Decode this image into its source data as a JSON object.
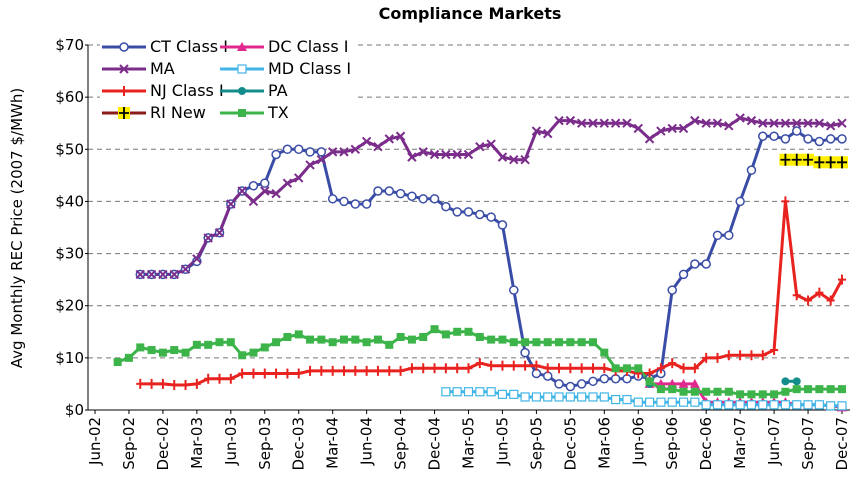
{
  "chart_data": {
    "type": "line",
    "title": "Compliance Markets",
    "y_label": "Avg Monthly REC Price (2007 $/MWh)",
    "categories": [
      "Jun-02",
      null,
      null,
      "Sep-02",
      null,
      null,
      "Dec-02",
      null,
      null,
      "Mar-03",
      null,
      null,
      "Jun-03",
      null,
      null,
      "Sep-03",
      null,
      null,
      "Dec-03",
      null,
      null,
      "Mar-04",
      null,
      null,
      "Jun-04",
      null,
      null,
      "Sep-04",
      null,
      null,
      "Dec-04",
      null,
      null,
      "Mar-05",
      null,
      null,
      "Jun-05",
      null,
      null,
      "Sep-05",
      null,
      null,
      "Dec-05",
      null,
      null,
      "Mar-06",
      null,
      null,
      "Jun-06",
      null,
      null,
      "Sep-06",
      null,
      null,
      "Dec-06",
      null,
      null,
      "Mar-07",
      null,
      null,
      "Jun-07",
      null,
      null,
      "Sep-07",
      null,
      null,
      "Dec-07"
    ],
    "ylim": [
      0,
      70
    ],
    "yticks": [
      {
        "value": 0,
        "label": "$0"
      },
      {
        "value": 10,
        "label": "$10"
      },
      {
        "value": 20,
        "label": "$20"
      },
      {
        "value": 30,
        "label": "$30"
      },
      {
        "value": 40,
        "label": "$40"
      },
      {
        "value": 50,
        "label": "$50"
      },
      {
        "value": 60,
        "label": "$60"
      },
      {
        "value": 70,
        "label": "$70"
      }
    ],
    "grid": true,
    "legend": "top-left",
    "series": [
      {
        "name": "CT Class I",
        "color": "#3a4da6",
        "marker": "circle-open",
        "values": [
          null,
          null,
          null,
          null,
          26,
          26,
          26,
          26,
          27,
          28.5,
          33,
          34,
          39.5,
          42,
          43,
          43.5,
          49,
          50,
          50,
          49.5,
          49.5,
          40.5,
          40,
          39.5,
          39.5,
          42,
          42,
          41.5,
          41,
          40.5,
          40.5,
          39,
          38,
          38,
          37.5,
          37,
          35.5,
          23,
          11,
          7,
          6.5,
          5,
          4.5,
          5,
          5.5,
          6,
          6,
          6,
          6.5,
          6,
          7,
          23,
          26,
          28,
          28,
          33.5,
          33.5,
          40,
          46,
          52.5,
          52.5,
          52,
          53.5,
          52,
          51.5,
          52,
          52
        ]
      },
      {
        "name": "DC Class I",
        "color": "#e0288e",
        "marker": "triangle",
        "values": [
          null,
          null,
          null,
          null,
          null,
          null,
          null,
          null,
          null,
          null,
          null,
          null,
          null,
          null,
          null,
          null,
          null,
          null,
          null,
          null,
          null,
          null,
          null,
          null,
          null,
          null,
          null,
          null,
          null,
          null,
          null,
          null,
          null,
          null,
          null,
          null,
          null,
          null,
          null,
          null,
          null,
          null,
          null,
          null,
          null,
          null,
          null,
          null,
          null,
          5,
          5,
          5,
          5,
          5,
          1.5,
          1.5,
          1.5,
          1.5,
          1.5,
          1.5,
          1.5,
          1.5,
          1,
          1,
          1,
          0.8,
          0.5
        ]
      },
      {
        "name": "MA",
        "color": "#7b2d8b",
        "marker": "x",
        "values": [
          null,
          null,
          null,
          null,
          26,
          26,
          26,
          26,
          27,
          29,
          33,
          34,
          39.5,
          42,
          40,
          42,
          41.5,
          43.5,
          44.5,
          47,
          48,
          49.5,
          49.5,
          50,
          51.5,
          50.5,
          52,
          52.5,
          48.5,
          49.5,
          49,
          49,
          49,
          49,
          50.5,
          51,
          48.5,
          48,
          48,
          53.5,
          53,
          55.5,
          55.5,
          55,
          55,
          55,
          55,
          55,
          54,
          52,
          53.5,
          54,
          54,
          55.5,
          55,
          55,
          54.5,
          56,
          55.5,
          55,
          55,
          55,
          55,
          55,
          55,
          54.5,
          55
        ]
      },
      {
        "name": "MD Class I",
        "color": "#41b6e6",
        "marker": "square-open",
        "values": [
          null,
          null,
          null,
          null,
          null,
          null,
          null,
          null,
          null,
          null,
          null,
          null,
          null,
          null,
          null,
          null,
          null,
          null,
          null,
          null,
          null,
          null,
          null,
          null,
          null,
          null,
          null,
          null,
          null,
          null,
          null,
          3.5,
          3.5,
          3.5,
          3.5,
          3.5,
          3,
          3,
          2.5,
          2.5,
          2.5,
          2.5,
          2.5,
          2.5,
          2.5,
          2.5,
          2,
          2,
          1.5,
          1.5,
          1.5,
          1.5,
          1.5,
          1.5,
          1,
          1,
          1,
          1,
          1,
          1,
          1,
          1,
          1,
          1,
          1,
          0.8,
          0.8
        ]
      },
      {
        "name": "NJ Class I",
        "color": "#e8231f",
        "marker": "plus",
        "values": [
          null,
          null,
          null,
          null,
          5,
          5,
          5,
          4.8,
          4.8,
          5,
          6,
          6,
          6,
          7,
          7,
          7,
          7,
          7,
          7,
          7.5,
          7.5,
          7.5,
          7.5,
          7.5,
          7.5,
          7.5,
          7.5,
          7.5,
          8,
          8,
          8,
          8,
          8,
          8,
          9,
          8.5,
          8.5,
          8.5,
          8.5,
          8.5,
          8,
          8,
          8,
          8,
          8,
          8,
          7.5,
          7.5,
          7,
          7,
          8,
          9,
          8,
          8,
          10,
          10,
          10.5,
          10.5,
          10.5,
          10.5,
          11.5,
          40,
          22,
          21,
          22.5,
          21,
          25
        ]
      },
      {
        "name": "PA",
        "color": "#138c8c",
        "marker": "circle",
        "values": [
          null,
          null,
          null,
          null,
          null,
          null,
          null,
          null,
          null,
          null,
          null,
          null,
          null,
          null,
          null,
          null,
          null,
          null,
          null,
          null,
          null,
          null,
          null,
          null,
          null,
          null,
          null,
          null,
          null,
          null,
          null,
          null,
          null,
          null,
          null,
          null,
          null,
          null,
          null,
          null,
          null,
          null,
          null,
          null,
          null,
          null,
          null,
          null,
          null,
          5,
          null,
          null,
          null,
          null,
          null,
          null,
          null,
          null,
          null,
          null,
          null,
          5.5,
          5.5,
          null,
          null,
          null,
          null
        ]
      },
      {
        "name": "RI New",
        "color": "#8b1a1a",
        "marker": "plus-yellow",
        "values": [
          null,
          null,
          null,
          null,
          null,
          null,
          null,
          null,
          null,
          null,
          null,
          null,
          null,
          null,
          null,
          null,
          null,
          null,
          null,
          null,
          null,
          null,
          null,
          null,
          null,
          null,
          null,
          null,
          null,
          null,
          null,
          null,
          null,
          null,
          null,
          null,
          null,
          null,
          null,
          null,
          null,
          null,
          null,
          null,
          null,
          null,
          null,
          null,
          null,
          null,
          null,
          null,
          null,
          null,
          null,
          null,
          null,
          null,
          null,
          null,
          null,
          48,
          48,
          48,
          47.5,
          47.5,
          47.5
        ]
      },
      {
        "name": "TX",
        "color": "#3cb44a",
        "marker": "square",
        "values": [
          null,
          null,
          9.2,
          10,
          12,
          11.5,
          11,
          11.5,
          11,
          12.5,
          12.5,
          13,
          13,
          10.5,
          11,
          12,
          13,
          14,
          14.5,
          13.5,
          13.5,
          13,
          13.5,
          13.5,
          13,
          13.5,
          12.5,
          14,
          13.5,
          14,
          15.5,
          14.5,
          15,
          15,
          14,
          13.5,
          13.5,
          13,
          13,
          13,
          13,
          13,
          13,
          13,
          13,
          11,
          8,
          8,
          8,
          5.5,
          4,
          4,
          3.5,
          3.5,
          3.5,
          3.5,
          3.5,
          3,
          3,
          3,
          3,
          3.5,
          4,
          4,
          4,
          4,
          4
        ]
      }
    ]
  }
}
